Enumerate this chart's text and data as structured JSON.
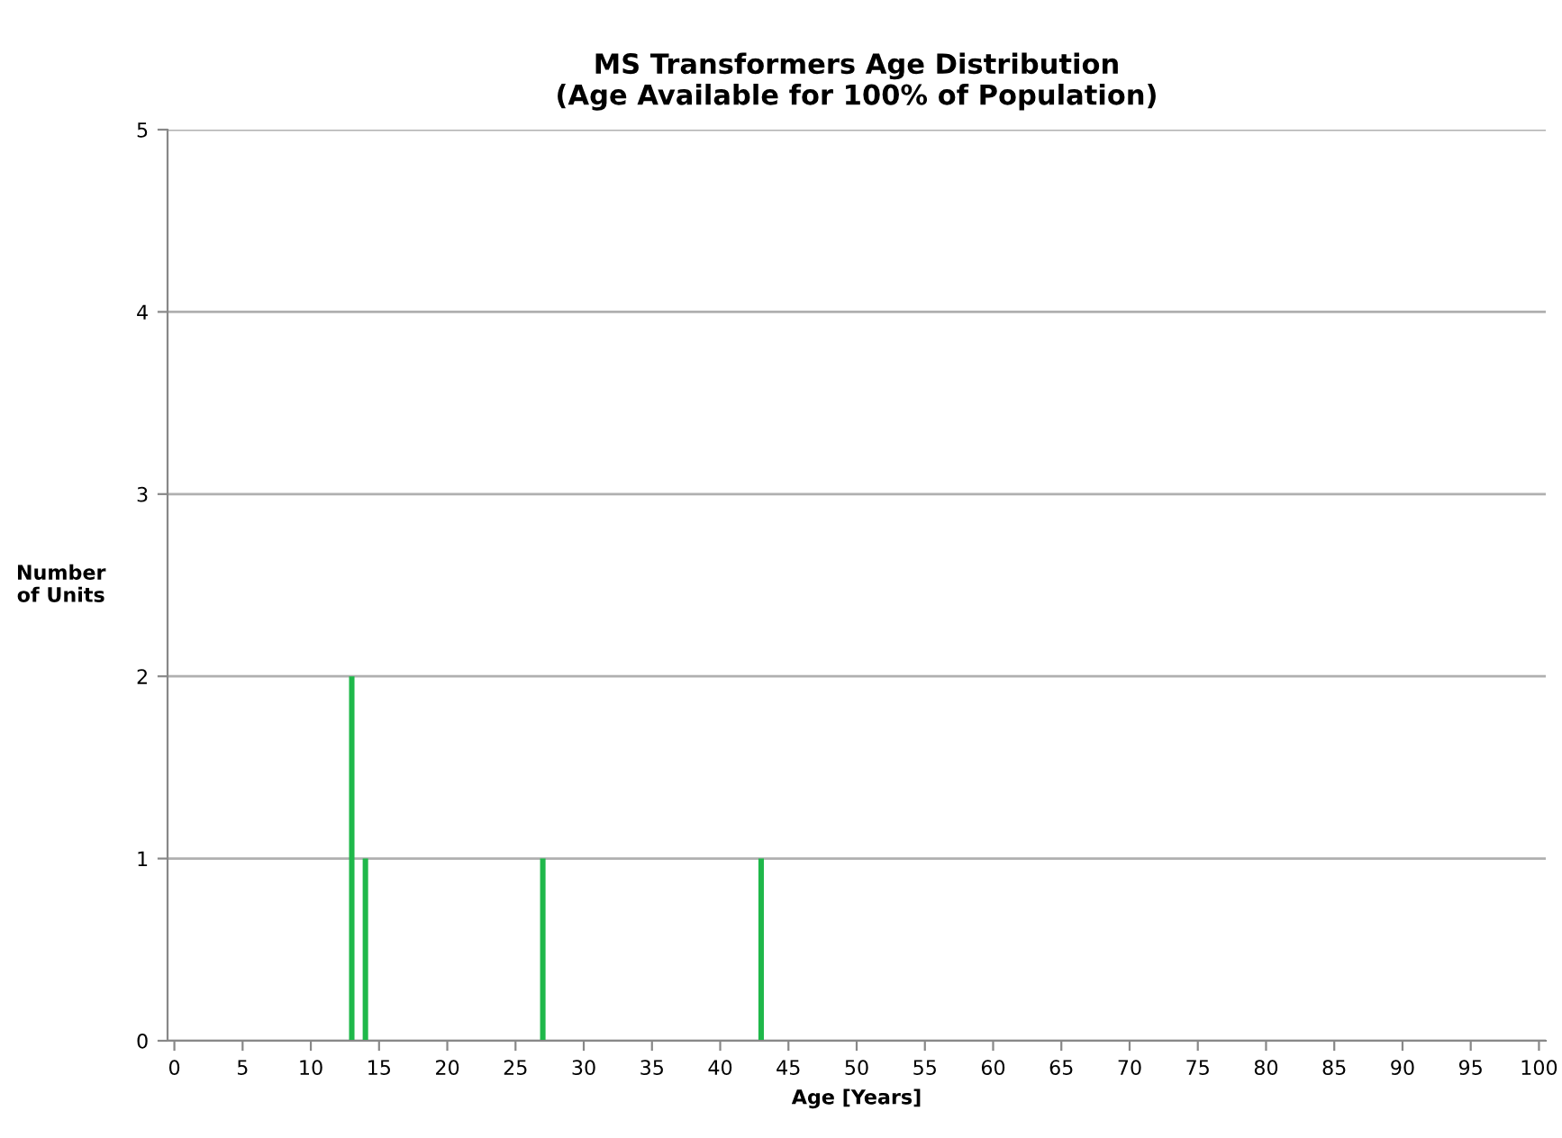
{
  "chart_data": {
    "type": "bar",
    "title": "MS Transformers Age Distribution\n(Age Available for 100% of Population)",
    "xlabel": "Age [Years]",
    "ylabel": "Number\nof Units",
    "x": [
      13,
      14,
      27,
      43
    ],
    "values": [
      2,
      1,
      1,
      1
    ],
    "color": "#1fb84a",
    "xlim": [
      -0.5,
      100.5
    ],
    "xticks": [
      0,
      5,
      10,
      15,
      20,
      25,
      30,
      35,
      40,
      45,
      50,
      55,
      60,
      65,
      70,
      75,
      80,
      85,
      90,
      95,
      100
    ],
    "ylim": [
      0,
      5
    ],
    "yticks": [
      0,
      1,
      2,
      3,
      4,
      5
    ],
    "grid": "y"
  }
}
